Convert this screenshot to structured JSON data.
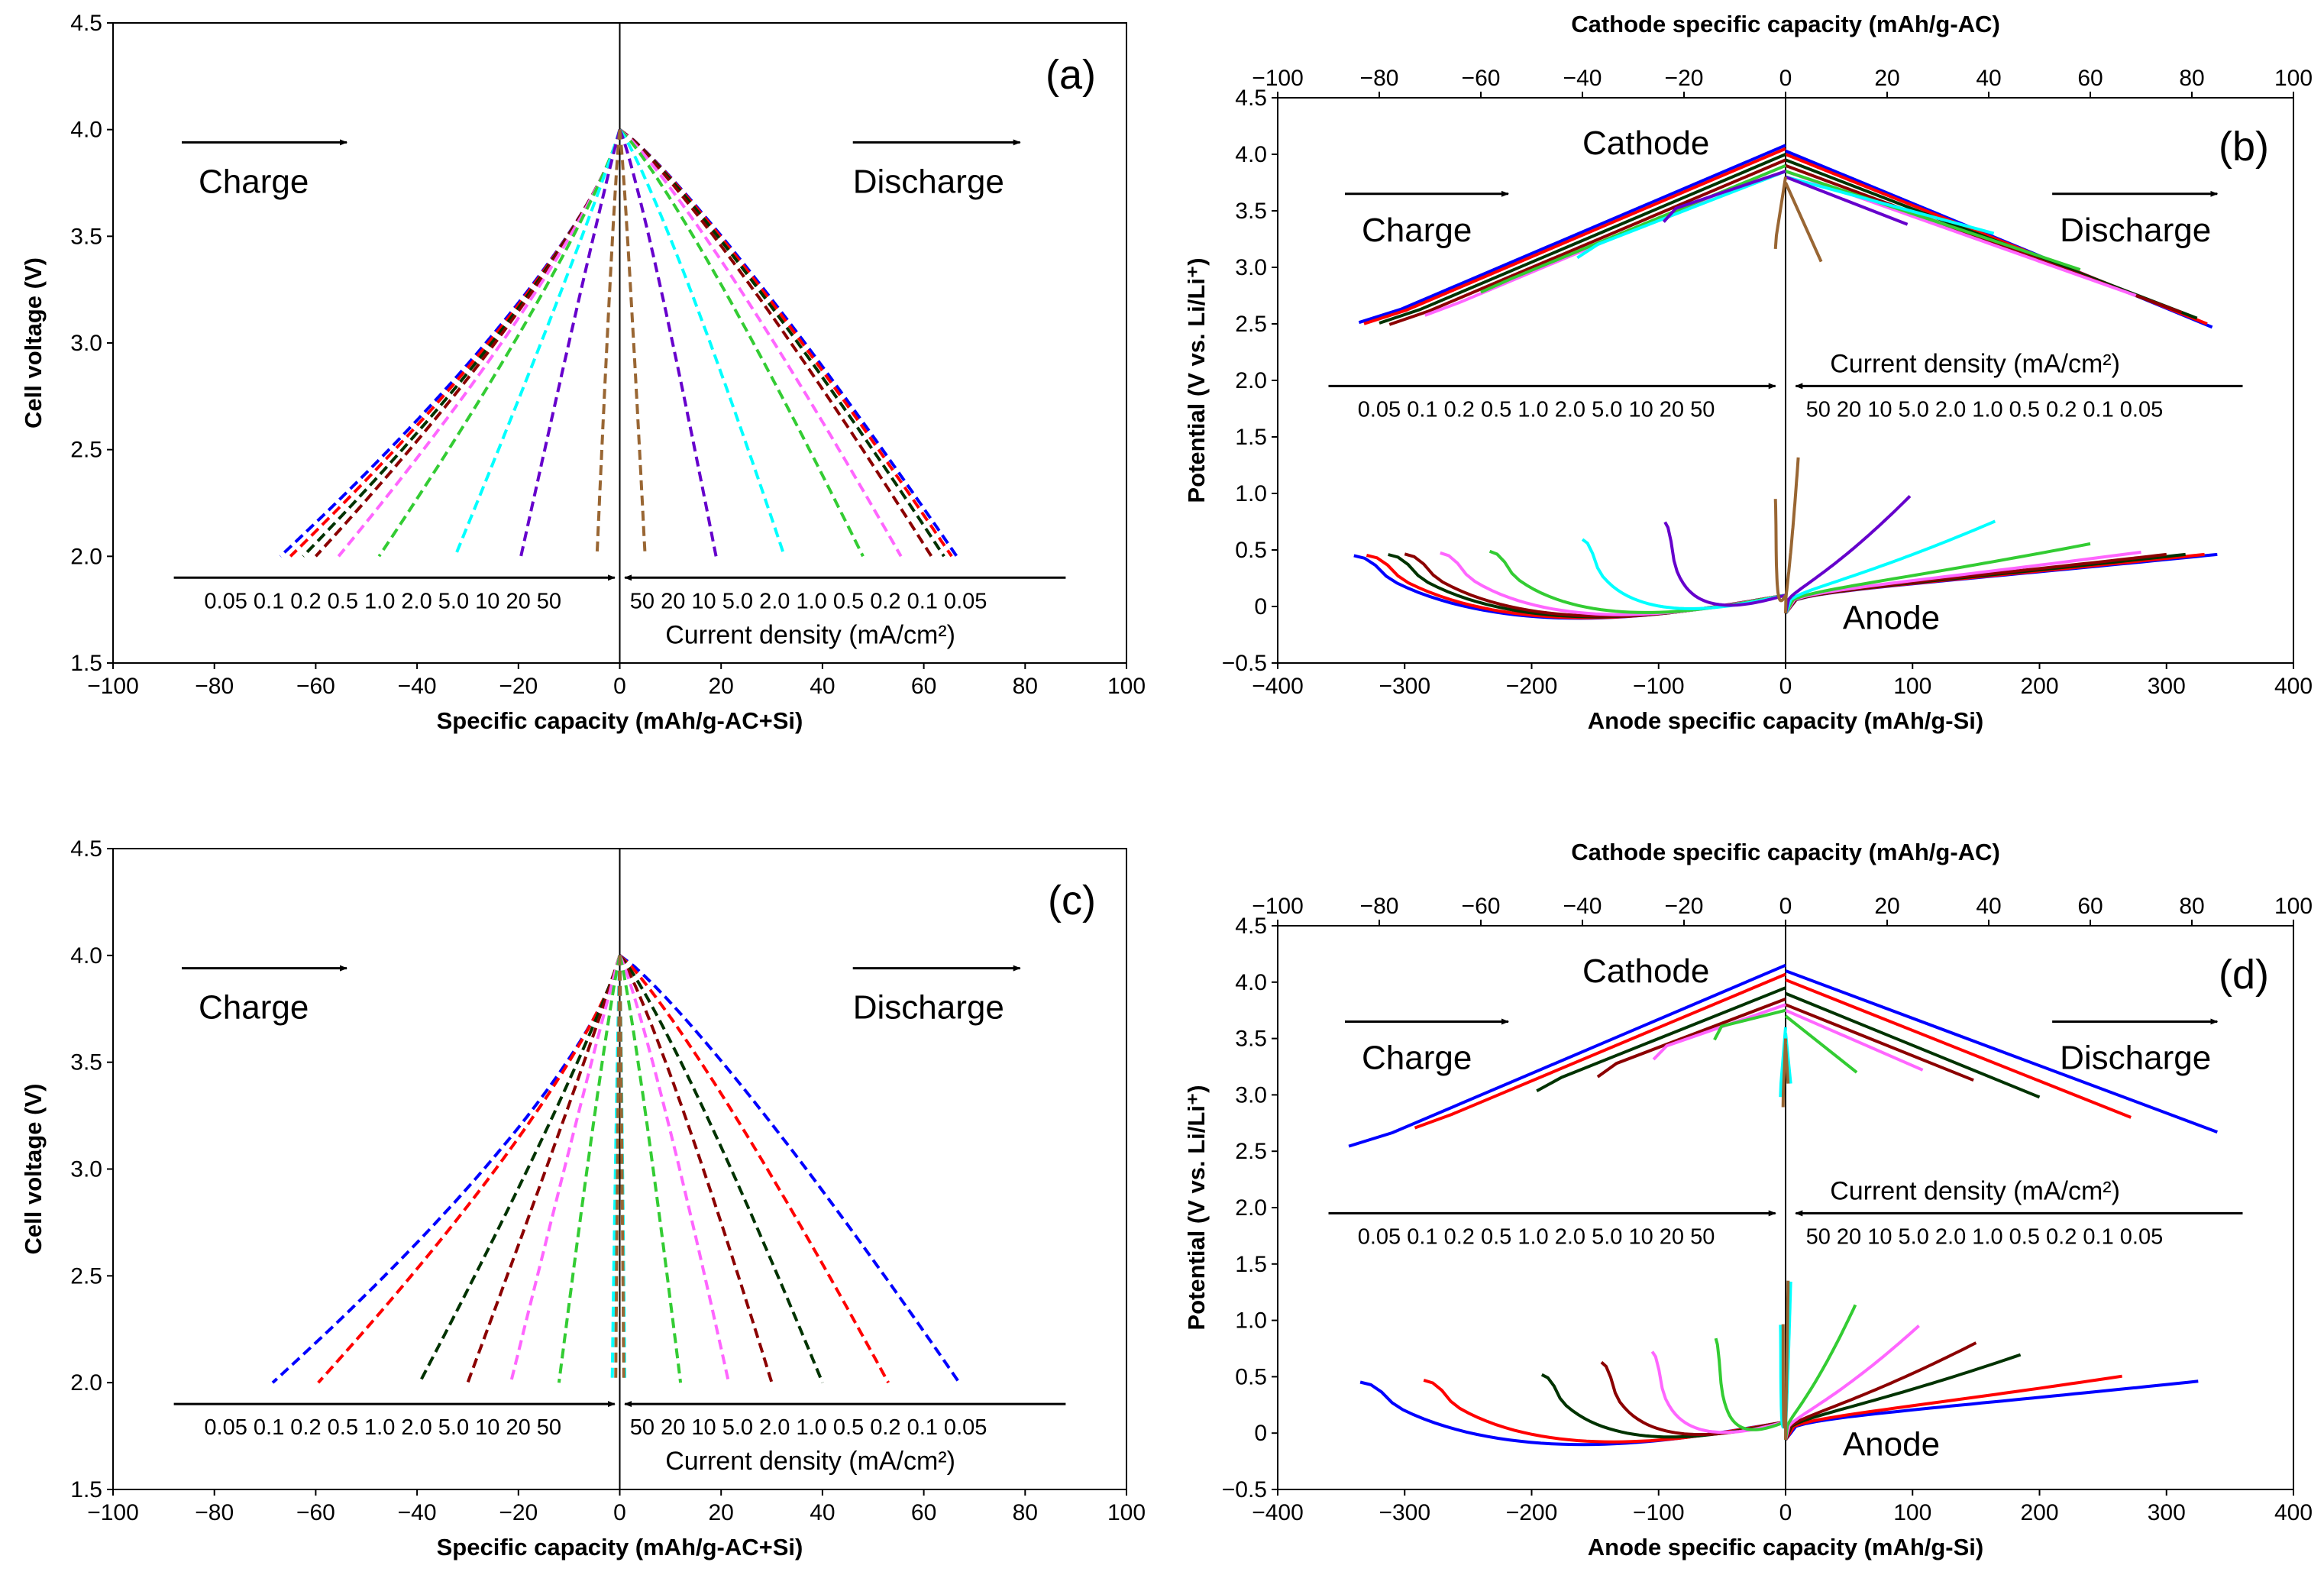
{
  "chart_data": [
    {
      "id": "a",
      "type": "line",
      "panel_label": "(a)",
      "xlabel": "Specific capacity (mAh/g-AC+Si)",
      "ylabel": "Cell voltage (V)",
      "xlim": [
        -100,
        100
      ],
      "ylim": [
        1.5,
        4.5
      ],
      "xticks": [
        "−100",
        "−80",
        "−60",
        "−40",
        "−20",
        "0",
        "20",
        "40",
        "60",
        "80",
        "100"
      ],
      "yticks": [
        "1.5",
        "2.0",
        "2.5",
        "3.0",
        "3.5",
        "4.0",
        "4.5"
      ],
      "charge_label": "Charge",
      "discharge_label": "Discharge",
      "charge_densities": "0.05 0.1 0.2 0.5 1.0 2.0 5.0 10 20 50",
      "discharge_densities": "50 20 10 5.0 2.0 1.0 0.5 0.2 0.1 0.05",
      "current_density_label": "Current density (mA/cm²)",
      "series": [
        {
          "name": "0.05",
          "color": "#0000ff",
          "charge_cap": -67,
          "discharge_cap": 66.5
        },
        {
          "name": "0.1",
          "color": "#ff0000",
          "charge_cap": -65,
          "discharge_cap": 65.5
        },
        {
          "name": "0.2",
          "color": "#003300",
          "charge_cap": -62.5,
          "discharge_cap": 64
        },
        {
          "name": "0.5",
          "color": "#8b0000",
          "charge_cap": -60,
          "discharge_cap": 61.5
        },
        {
          "name": "1.0",
          "color": "#ff66ff",
          "charge_cap": -55.5,
          "discharge_cap": 55.5
        },
        {
          "name": "2.0",
          "color": "#33cc33",
          "charge_cap": -47.5,
          "discharge_cap": 48
        },
        {
          "name": "5.0",
          "color": "#00ffff",
          "charge_cap": -32.5,
          "discharge_cap": 32.5
        },
        {
          "name": "10",
          "color": "#6600cc",
          "charge_cap": -19.5,
          "discharge_cap": 19
        },
        {
          "name": "20",
          "color": "#996633",
          "charge_cap": -4.5,
          "discharge_cap": 5
        }
      ]
    },
    {
      "id": "b",
      "type": "line",
      "panel_label": "(b)",
      "xlabel": "Anode specific capacity (mAh/g-Si)",
      "ylabel": "Potential (V vs. Li/Li⁺)",
      "x2label": "Cathode specific capacity (mAh/g-AC)",
      "xlim": [
        -400,
        400
      ],
      "x2lim": [
        -100,
        100
      ],
      "ylim": [
        -0.5,
        4.5
      ],
      "xticks": [
        "−400",
        "−300",
        "−200",
        "−100",
        "0",
        "100",
        "200",
        "300",
        "400"
      ],
      "x2ticks": [
        "−100",
        "−80",
        "−60",
        "−40",
        "−20",
        "0",
        "20",
        "40",
        "60",
        "80",
        "100"
      ],
      "yticks": [
        "−0.5",
        "0",
        "0.5",
        "1.0",
        "1.5",
        "2.0",
        "2.5",
        "3.0",
        "3.5",
        "4.0",
        "4.5"
      ],
      "cathode_label": "Cathode",
      "anode_label": "Anode",
      "charge_label": "Charge",
      "discharge_label": "Discharge",
      "charge_densities": "0.05 0.1 0.2 0.5 1.0 2.0 5.0 10 20 50",
      "discharge_densities": "50 20 10 5.0 2.0 1.0 0.5 0.2 0.1 0.05",
      "current_density_label": "Current density (mA/cm²)",
      "series": [
        {
          "name": "0.05",
          "color": "#0000ff",
          "cat_ch": -84,
          "cat_dis": 84,
          "cat_top": 4.08,
          "cat_end": 2.47,
          "an_ch": -340,
          "an_dis": 340
        },
        {
          "name": "0.1",
          "color": "#ff0000",
          "cat_ch": -83,
          "cat_dis": 83,
          "cat_top": 4.05,
          "cat_end": 2.5,
          "an_ch": -330,
          "an_dis": 330
        },
        {
          "name": "0.2",
          "color": "#003300",
          "cat_ch": -80,
          "cat_dis": 81,
          "cat_top": 4.0,
          "cat_end": 2.55,
          "an_ch": -313,
          "an_dis": 315
        },
        {
          "name": "0.5",
          "color": "#8b0000",
          "cat_ch": -78,
          "cat_dis": 78,
          "cat_top": 3.95,
          "cat_end": 2.6,
          "an_ch": -300,
          "an_dis": 300
        },
        {
          "name": "1.0",
          "color": "#ff66ff",
          "cat_ch": -71,
          "cat_dis": 69,
          "cat_top": 3.9,
          "cat_end": 2.75,
          "an_ch": -272,
          "an_dis": 280
        },
        {
          "name": "2.0",
          "color": "#33cc33",
          "cat_ch": -60,
          "cat_dis": 58,
          "cat_top": 3.9,
          "cat_end": 2.98,
          "an_ch": -233,
          "an_dis": 240
        },
        {
          "name": "5.0",
          "color": "#00ffff",
          "cat_ch": -41,
          "cat_dis": 41,
          "cat_top": 3.85,
          "cat_end": 3.3,
          "an_ch": -160,
          "an_dis": 165
        },
        {
          "name": "10",
          "color": "#6600cc",
          "cat_ch": -24,
          "cat_dis": 24,
          "cat_top": 3.85,
          "cat_end": 3.38,
          "an_ch": -95,
          "an_dis": 98
        },
        {
          "name": "20",
          "color": "#996633",
          "cat_ch": -2,
          "cat_dis": 7,
          "cat_top": 3.8,
          "cat_end": 3.05,
          "an_ch": -8,
          "an_dis": 10
        }
      ]
    },
    {
      "id": "c",
      "type": "line",
      "panel_label": "(c)",
      "xlabel": "Specific capacity (mAh/g-AC+Si)",
      "ylabel": "Cell voltage (V)",
      "xlim": [
        -100,
        100
      ],
      "ylim": [
        1.5,
        4.5
      ],
      "xticks": [
        "−100",
        "−80",
        "−60",
        "−40",
        "−20",
        "0",
        "20",
        "40",
        "60",
        "80",
        "100"
      ],
      "yticks": [
        "1.5",
        "2.0",
        "2.5",
        "3.0",
        "3.5",
        "4.0",
        "4.5"
      ],
      "charge_label": "Charge",
      "discharge_label": "Discharge",
      "charge_densities": "0.05 0.1 0.2 0.5 1.0 2.0 5.0 10 20 50",
      "discharge_densities": "50 20 10 5.0 2.0 1.0 0.5 0.2 0.1 0.05",
      "current_density_label": "Current density (mA/cm²)",
      "series": [
        {
          "name": "0.05",
          "color": "#0000ff",
          "charge_cap": -68.5,
          "discharge_cap": 67
        },
        {
          "name": "0.1",
          "color": "#ff0000",
          "charge_cap": -59.5,
          "discharge_cap": 53
        },
        {
          "name": "0.5",
          "color": "#003300",
          "charge_cap": -39.5,
          "discharge_cap": 40
        },
        {
          "name": "1.0",
          "color": "#8b0000",
          "charge_cap": -30,
          "discharge_cap": 30
        },
        {
          "name": "2.0",
          "color": "#ff66ff",
          "charge_cap": -21.5,
          "discharge_cap": 21.5
        },
        {
          "name": "5.0",
          "color": "#33cc33",
          "charge_cap": -12,
          "discharge_cap": 12
        },
        {
          "name": "10",
          "color": "#00ffff",
          "charge_cap": -1.5,
          "discharge_cap": 1
        },
        {
          "name": "20",
          "color": "#996633",
          "charge_cap": -0.8,
          "discharge_cap": 0.8
        }
      ]
    },
    {
      "id": "d",
      "type": "line",
      "panel_label": "(d)",
      "xlabel": "Anode specific capacity (mAh/g-Si)",
      "ylabel": "Potential (V vs. Li/Li⁺)",
      "x2label": "Cathode specific capacity (mAh/g-AC)",
      "xlim": [
        -400,
        400
      ],
      "x2lim": [
        -100,
        100
      ],
      "ylim": [
        -0.5,
        4.5
      ],
      "xticks": [
        "−400",
        "−300",
        "−200",
        "−100",
        "0",
        "100",
        "200",
        "300",
        "400"
      ],
      "x2ticks": [
        "−100",
        "−80",
        "−60",
        "−40",
        "−20",
        "0",
        "20",
        "40",
        "60",
        "80",
        "100"
      ],
      "yticks": [
        "−0.5",
        "0",
        "0.5",
        "1.0",
        "1.5",
        "2.0",
        "2.5",
        "3.0",
        "3.5",
        "4.0",
        "4.5"
      ],
      "cathode_label": "Cathode",
      "anode_label": "Anode",
      "charge_label": "Charge",
      "discharge_label": "Discharge",
      "charge_densities": "0.05 0.1 0.2 0.5 1.0 2.0 5.0 10 20 50",
      "discharge_densities": "50 20 10 5.0 2.0 1.0 0.5 0.2 0.1 0.05",
      "current_density_label": "Current density (mA/cm²)",
      "series": [
        {
          "name": "0.05",
          "color": "#0000ff",
          "cat_ch": -86,
          "cat_dis": 85,
          "cat_top": 4.15,
          "cat_end": 2.67,
          "an_ch": -335,
          "an_dis": 325
        },
        {
          "name": "0.1",
          "color": "#ff0000",
          "cat_ch": -73,
          "cat_dis": 68,
          "cat_top": 4.07,
          "cat_end": 2.8,
          "an_ch": -285,
          "an_dis": 265
        },
        {
          "name": "0.5",
          "color": "#003300",
          "cat_ch": -49,
          "cat_dis": 50,
          "cat_top": 3.95,
          "cat_end": 2.98,
          "an_ch": -192,
          "an_dis": 185
        },
        {
          "name": "1.0",
          "color": "#8b0000",
          "cat_ch": -37,
          "cat_dis": 37,
          "cat_top": 3.85,
          "cat_end": 3.13,
          "an_ch": -145,
          "an_dis": 150
        },
        {
          "name": "2.0",
          "color": "#ff66ff",
          "cat_ch": -26,
          "cat_dis": 27,
          "cat_top": 3.8,
          "cat_end": 3.22,
          "an_ch": -105,
          "an_dis": 105
        },
        {
          "name": "5.0",
          "color": "#33cc33",
          "cat_ch": -14,
          "cat_dis": 14,
          "cat_top": 3.75,
          "cat_end": 3.2,
          "an_ch": -55,
          "an_dis": 55
        },
        {
          "name": "10",
          "color": "#00ffff",
          "cat_ch": -1,
          "cat_dis": 1,
          "cat_top": 3.6,
          "cat_end": 3.1,
          "an_ch": -4,
          "an_dis": 4
        },
        {
          "name": "20",
          "color": "#996633",
          "cat_ch": -0.5,
          "cat_dis": 0.5,
          "cat_top": 3.5,
          "cat_end": 3.1,
          "an_ch": -2,
          "an_dis": 2
        }
      ]
    }
  ]
}
